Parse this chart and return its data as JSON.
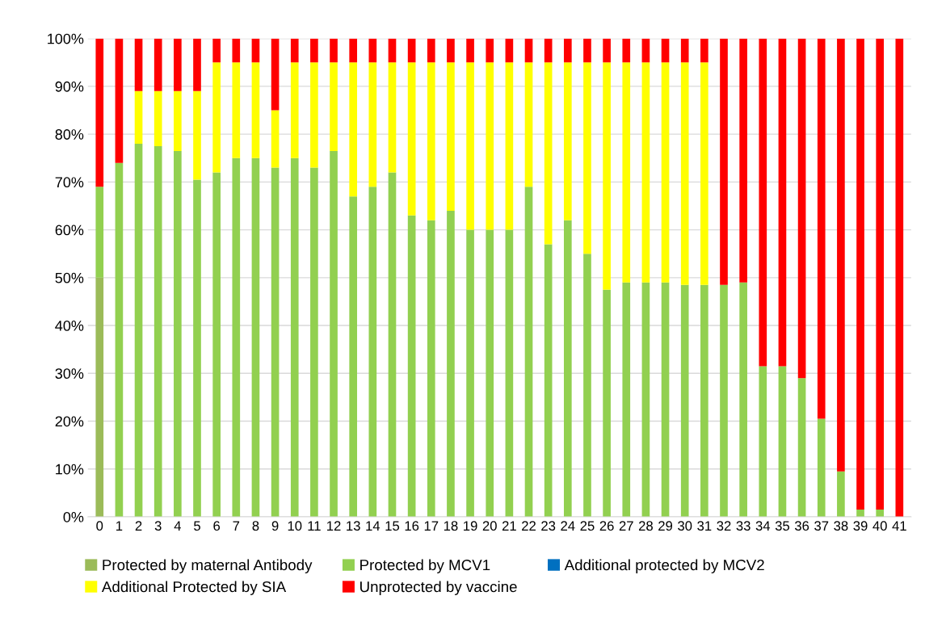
{
  "chart_data": {
    "type": "bar",
    "stacked": true,
    "categories": [
      "0",
      "1",
      "2",
      "3",
      "4",
      "5",
      "6",
      "7",
      "8",
      "9",
      "10",
      "11",
      "12",
      "13",
      "14",
      "15",
      "16",
      "17",
      "18",
      "19",
      "20",
      "21",
      "22",
      "23",
      "24",
      "25",
      "26",
      "27",
      "28",
      "29",
      "30",
      "31",
      "32",
      "33",
      "34",
      "35",
      "36",
      "37",
      "38",
      "39",
      "40",
      "41"
    ],
    "series": [
      {
        "name": "Protected by maternal Antibody",
        "color": "#9bbb59",
        "values": [
          50,
          0,
          0,
          0,
          0,
          0,
          0,
          0,
          0,
          0,
          0,
          0,
          0,
          0,
          0,
          0,
          0,
          0,
          0,
          0,
          0,
          0,
          0,
          0,
          0,
          0,
          0,
          0,
          0,
          0,
          0,
          0,
          0,
          0,
          0,
          0,
          0,
          0,
          0,
          0,
          0,
          0
        ]
      },
      {
        "name": "Protected by MCV1",
        "color": "#92d050",
        "values": [
          19,
          74,
          78,
          77.5,
          76.5,
          70.5,
          72,
          75,
          75,
          73,
          75,
          73,
          76.5,
          67,
          69,
          72,
          63,
          62,
          64,
          60,
          60,
          60,
          69,
          57,
          62,
          55,
          47.5,
          49,
          49,
          49,
          48.5,
          48.5,
          48.5,
          49,
          31.5,
          31.5,
          29,
          20.5,
          9.5,
          1.5,
          1.5,
          0
        ]
      },
      {
        "name": "Additional protected by MCV2",
        "color": "#0070c0",
        "values": [
          0,
          0,
          0,
          0,
          0,
          0,
          0,
          0,
          0,
          0,
          0,
          0,
          0,
          0,
          0,
          0,
          0,
          0,
          0,
          0,
          0,
          0,
          0,
          0,
          0,
          0,
          0,
          0,
          0,
          0,
          0,
          0,
          0,
          0,
          0,
          0,
          0,
          0,
          0,
          0,
          0,
          0
        ]
      },
      {
        "name": "Additional Protected by SIA",
        "color": "#ffff00",
        "values": [
          0,
          0,
          11,
          11.5,
          12.5,
          18.5,
          23,
          20,
          20,
          12,
          20,
          22,
          18.5,
          28,
          26,
          23,
          32,
          33,
          31,
          35,
          35,
          35,
          26,
          38,
          33,
          40,
          47.5,
          46,
          46,
          46,
          46.5,
          46.5,
          0,
          0,
          0,
          0,
          0,
          0,
          0,
          0,
          0,
          0
        ]
      },
      {
        "name": "Unprotected by vaccine",
        "color": "#ff0000",
        "values": [
          31,
          26,
          11,
          11,
          11,
          11,
          5,
          5,
          5,
          15,
          5,
          5,
          5,
          5,
          5,
          5,
          5,
          5,
          5,
          5,
          5,
          5,
          5,
          5,
          5,
          5,
          5,
          5,
          5,
          5,
          5,
          5,
          51.5,
          51,
          68.5,
          68.5,
          71,
          79.5,
          90.5,
          98.5,
          98.5,
          100
        ]
      }
    ],
    "ylim": [
      0,
      100
    ],
    "yticks": [
      {
        "value": 0,
        "label": "0%"
      },
      {
        "value": 10,
        "label": "10%"
      },
      {
        "value": 20,
        "label": "20%"
      },
      {
        "value": 30,
        "label": "30%"
      },
      {
        "value": 40,
        "label": "40%"
      },
      {
        "value": 50,
        "label": "50%"
      },
      {
        "value": 60,
        "label": "60%"
      },
      {
        "value": 70,
        "label": "70%"
      },
      {
        "value": 80,
        "label": "80%"
      },
      {
        "value": 90,
        "label": "90%"
      },
      {
        "value": 100,
        "label": "100%"
      }
    ],
    "grid": "y",
    "legend": "bottom"
  }
}
